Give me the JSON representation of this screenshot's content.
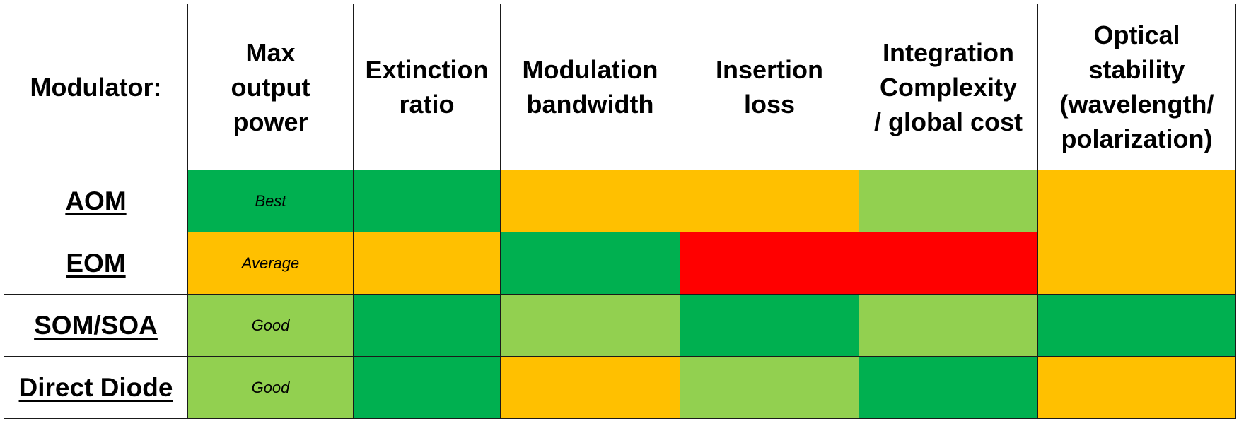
{
  "table": {
    "header": {
      "corner": "Modulator:",
      "columns": [
        "Max\noutput\npower",
        "Extinction\nratio",
        "Modulation\nbandwidth",
        "Insertion\nloss",
        "Integration\nComplexity\n/ global cost",
        "Optical\nstability\n(wavelength/\npolarization)"
      ]
    },
    "legend_colors": {
      "dark_green": "#00b050",
      "light_green": "#92d050",
      "orange": "#ffc000",
      "red": "#ff0000"
    },
    "rows": [
      {
        "name": "AOM",
        "cells": [
          {
            "text": "Best",
            "color": "#00b050"
          },
          {
            "text": "",
            "color": "#00b050"
          },
          {
            "text": "",
            "color": "#ffc000"
          },
          {
            "text": "",
            "color": "#ffc000"
          },
          {
            "text": "",
            "color": "#92d050"
          },
          {
            "text": "",
            "color": "#ffc000"
          }
        ]
      },
      {
        "name": "EOM",
        "cells": [
          {
            "text": "Average",
            "color": "#ffc000"
          },
          {
            "text": "",
            "color": "#ffc000"
          },
          {
            "text": "",
            "color": "#00b050"
          },
          {
            "text": "",
            "color": "#ff0000"
          },
          {
            "text": "",
            "color": "#ff0000"
          },
          {
            "text": "",
            "color": "#ffc000"
          }
        ]
      },
      {
        "name": "SOM/SOA",
        "cells": [
          {
            "text": "Good",
            "color": "#92d050"
          },
          {
            "text": "",
            "color": "#00b050"
          },
          {
            "text": "",
            "color": "#92d050"
          },
          {
            "text": "",
            "color": "#00b050"
          },
          {
            "text": "",
            "color": "#92d050"
          },
          {
            "text": "",
            "color": "#00b050"
          }
        ]
      },
      {
        "name": "Direct Diode",
        "cells": [
          {
            "text": "Good",
            "color": "#92d050"
          },
          {
            "text": "",
            "color": "#00b050"
          },
          {
            "text": "",
            "color": "#ffc000"
          },
          {
            "text": "",
            "color": "#92d050"
          },
          {
            "text": "",
            "color": "#00b050"
          },
          {
            "text": "",
            "color": "#ffc000"
          }
        ]
      }
    ]
  }
}
